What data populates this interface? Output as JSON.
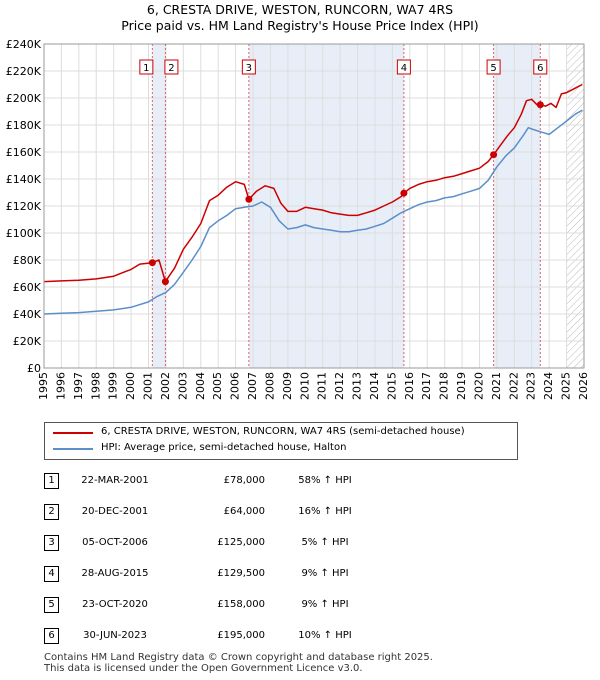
{
  "chart_data": {
    "type": "line",
    "title": "6, CRESTA DRIVE, WESTON, RUNCORN, WA7 4RS",
    "subtitle": "Price paid vs. HM Land Registry's House Price Index (HPI)",
    "xlim": [
      1995,
      2026
    ],
    "ylim": [
      0,
      240000
    ],
    "x_ticks": [
      1995,
      1996,
      1997,
      1998,
      1999,
      2000,
      2001,
      2002,
      2003,
      2004,
      2005,
      2006,
      2007,
      2008,
      2009,
      2010,
      2011,
      2012,
      2013,
      2014,
      2015,
      2016,
      2017,
      2018,
      2019,
      2020,
      2021,
      2022,
      2023,
      2024,
      2025,
      2026
    ],
    "y_ticks": [
      {
        "value": 0,
        "label": "£0"
      },
      {
        "value": 20000,
        "label": "£20K"
      },
      {
        "value": 40000,
        "label": "£40K"
      },
      {
        "value": 60000,
        "label": "£60K"
      },
      {
        "value": 80000,
        "label": "£80K"
      },
      {
        "value": 100000,
        "label": "£100K"
      },
      {
        "value": 120000,
        "label": "£120K"
      },
      {
        "value": 140000,
        "label": "£140K"
      },
      {
        "value": 160000,
        "label": "£160K"
      },
      {
        "value": 180000,
        "label": "£180K"
      },
      {
        "value": 200000,
        "label": "£200K"
      },
      {
        "value": 220000,
        "label": "£220K"
      },
      {
        "value": 240000,
        "label": "£240K"
      }
    ],
    "grid": true,
    "forecast_start": 2025.0,
    "series": [
      {
        "name": "6, CRESTA DRIVE, WESTON, RUNCORN, WA7 4RS (semi-detached house)",
        "color": "#cc0000",
        "points": [
          [
            1995.0,
            64000
          ],
          [
            1996.0,
            64500
          ],
          [
            1997.0,
            65000
          ],
          [
            1998.0,
            66000
          ],
          [
            1999.0,
            68000
          ],
          [
            2000.0,
            73000
          ],
          [
            2000.5,
            77000
          ],
          [
            2001.22,
            78000
          ],
          [
            2001.6,
            80000
          ],
          [
            2001.97,
            64000
          ],
          [
            2002.5,
            74000
          ],
          [
            2003.0,
            88000
          ],
          [
            2003.5,
            97000
          ],
          [
            2004.0,
            107000
          ],
          [
            2004.5,
            124000
          ],
          [
            2005.0,
            128000
          ],
          [
            2005.5,
            134000
          ],
          [
            2006.0,
            138000
          ],
          [
            2006.5,
            136000
          ],
          [
            2006.76,
            125000
          ],
          [
            2007.2,
            131000
          ],
          [
            2007.7,
            135000
          ],
          [
            2008.2,
            133000
          ],
          [
            2008.6,
            122000
          ],
          [
            2009.0,
            116000
          ],
          [
            2009.5,
            116000
          ],
          [
            2010.0,
            119000
          ],
          [
            2010.5,
            118000
          ],
          [
            2011.0,
            117000
          ],
          [
            2011.5,
            115000
          ],
          [
            2012.0,
            114000
          ],
          [
            2012.5,
            113000
          ],
          [
            2013.0,
            113000
          ],
          [
            2013.5,
            115000
          ],
          [
            2014.0,
            117000
          ],
          [
            2014.5,
            120000
          ],
          [
            2015.0,
            123000
          ],
          [
            2015.5,
            127000
          ],
          [
            2015.66,
            129500
          ],
          [
            2016.0,
            133000
          ],
          [
            2016.5,
            136000
          ],
          [
            2017.0,
            138000
          ],
          [
            2017.5,
            139000
          ],
          [
            2018.0,
            141000
          ],
          [
            2018.5,
            142000
          ],
          [
            2019.0,
            144000
          ],
          [
            2019.5,
            146000
          ],
          [
            2020.0,
            148000
          ],
          [
            2020.5,
            153000
          ],
          [
            2020.81,
            158000
          ],
          [
            2021.2,
            165000
          ],
          [
            2021.6,
            172000
          ],
          [
            2022.0,
            178000
          ],
          [
            2022.4,
            188000
          ],
          [
            2022.7,
            198000
          ],
          [
            2023.0,
            199000
          ],
          [
            2023.3,
            195000
          ],
          [
            2023.49,
            195000
          ],
          [
            2023.8,
            194000
          ],
          [
            2024.1,
            196000
          ],
          [
            2024.4,
            193000
          ],
          [
            2024.7,
            203000
          ],
          [
            2025.0,
            204000
          ],
          [
            2025.3,
            206000
          ],
          [
            2025.6,
            208000
          ],
          [
            2025.9,
            210000
          ]
        ]
      },
      {
        "name": "HPI: Average price, semi-detached house, Halton",
        "color": "#5b8fc9",
        "points": [
          [
            1995.0,
            40000
          ],
          [
            1996.0,
            40500
          ],
          [
            1997.0,
            41000
          ],
          [
            1998.0,
            42000
          ],
          [
            1999.0,
            43000
          ],
          [
            2000.0,
            45000
          ],
          [
            2001.0,
            49000
          ],
          [
            2001.5,
            53000
          ],
          [
            2002.0,
            56000
          ],
          [
            2002.5,
            62000
          ],
          [
            2003.0,
            71000
          ],
          [
            2003.5,
            80000
          ],
          [
            2004.0,
            90000
          ],
          [
            2004.5,
            104000
          ],
          [
            2005.0,
            109000
          ],
          [
            2005.5,
            113000
          ],
          [
            2006.0,
            118000
          ],
          [
            2006.5,
            119000
          ],
          [
            2007.0,
            120000
          ],
          [
            2007.5,
            123000
          ],
          [
            2008.0,
            119000
          ],
          [
            2008.5,
            109000
          ],
          [
            2009.0,
            103000
          ],
          [
            2009.5,
            104000
          ],
          [
            2010.0,
            106000
          ],
          [
            2010.5,
            104000
          ],
          [
            2011.0,
            103000
          ],
          [
            2011.5,
            102000
          ],
          [
            2012.0,
            101000
          ],
          [
            2012.5,
            101000
          ],
          [
            2013.0,
            102000
          ],
          [
            2013.5,
            103000
          ],
          [
            2014.0,
            105000
          ],
          [
            2014.5,
            107000
          ],
          [
            2015.0,
            111000
          ],
          [
            2015.5,
            115000
          ],
          [
            2016.0,
            118000
          ],
          [
            2016.5,
            121000
          ],
          [
            2017.0,
            123000
          ],
          [
            2017.5,
            124000
          ],
          [
            2018.0,
            126000
          ],
          [
            2018.5,
            127000
          ],
          [
            2019.0,
            129000
          ],
          [
            2019.5,
            131000
          ],
          [
            2020.0,
            133000
          ],
          [
            2020.5,
            139000
          ],
          [
            2021.0,
            149000
          ],
          [
            2021.5,
            157000
          ],
          [
            2022.0,
            163000
          ],
          [
            2022.5,
            172000
          ],
          [
            2022.8,
            178000
          ],
          [
            2023.0,
            177000
          ],
          [
            2023.5,
            175000
          ],
          [
            2024.0,
            173000
          ],
          [
            2024.5,
            178000
          ],
          [
            2025.0,
            183000
          ],
          [
            2025.5,
            188000
          ],
          [
            2025.9,
            191000
          ]
        ]
      }
    ],
    "sales": [
      {
        "id": "1",
        "date": 2001.22,
        "price": 78000
      },
      {
        "id": "2",
        "date": 2001.97,
        "price": 64000
      },
      {
        "id": "3",
        "date": 2006.76,
        "price": 125000
      },
      {
        "id": "4",
        "date": 2015.66,
        "price": 129500
      },
      {
        "id": "5",
        "date": 2020.81,
        "price": 158000
      },
      {
        "id": "6",
        "date": 2023.49,
        "price": 195000
      }
    ],
    "shaded_periods": [
      [
        2001.22,
        2001.97
      ],
      [
        2006.76,
        2015.66
      ],
      [
        2020.81,
        2023.49
      ]
    ]
  },
  "legend": {
    "property": "6, CRESTA DRIVE, WESTON, RUNCORN, WA7 4RS (semi-detached house)",
    "hpi": "HPI: Average price, semi-detached house, Halton"
  },
  "sales_table": [
    {
      "num": "1",
      "date": "22-MAR-2001",
      "price": "£78,000",
      "hpi": "58% ↑ HPI"
    },
    {
      "num": "2",
      "date": "20-DEC-2001",
      "price": "£64,000",
      "hpi": "16% ↑ HPI"
    },
    {
      "num": "3",
      "date": "05-OCT-2006",
      "price": "£125,000",
      "hpi": "5% ↑ HPI"
    },
    {
      "num": "4",
      "date": "28-AUG-2015",
      "price": "£129,500",
      "hpi": "9% ↑ HPI"
    },
    {
      "num": "5",
      "date": "23-OCT-2020",
      "price": "£158,000",
      "hpi": "9% ↑ HPI"
    },
    {
      "num": "6",
      "date": "30-JUN-2023",
      "price": "£195,000",
      "hpi": "10% ↑ HPI"
    }
  ],
  "footer": {
    "line1": "Contains HM Land Registry data © Crown copyright and database right 2025.",
    "line2": "This data is licensed under the Open Government Licence v3.0."
  }
}
